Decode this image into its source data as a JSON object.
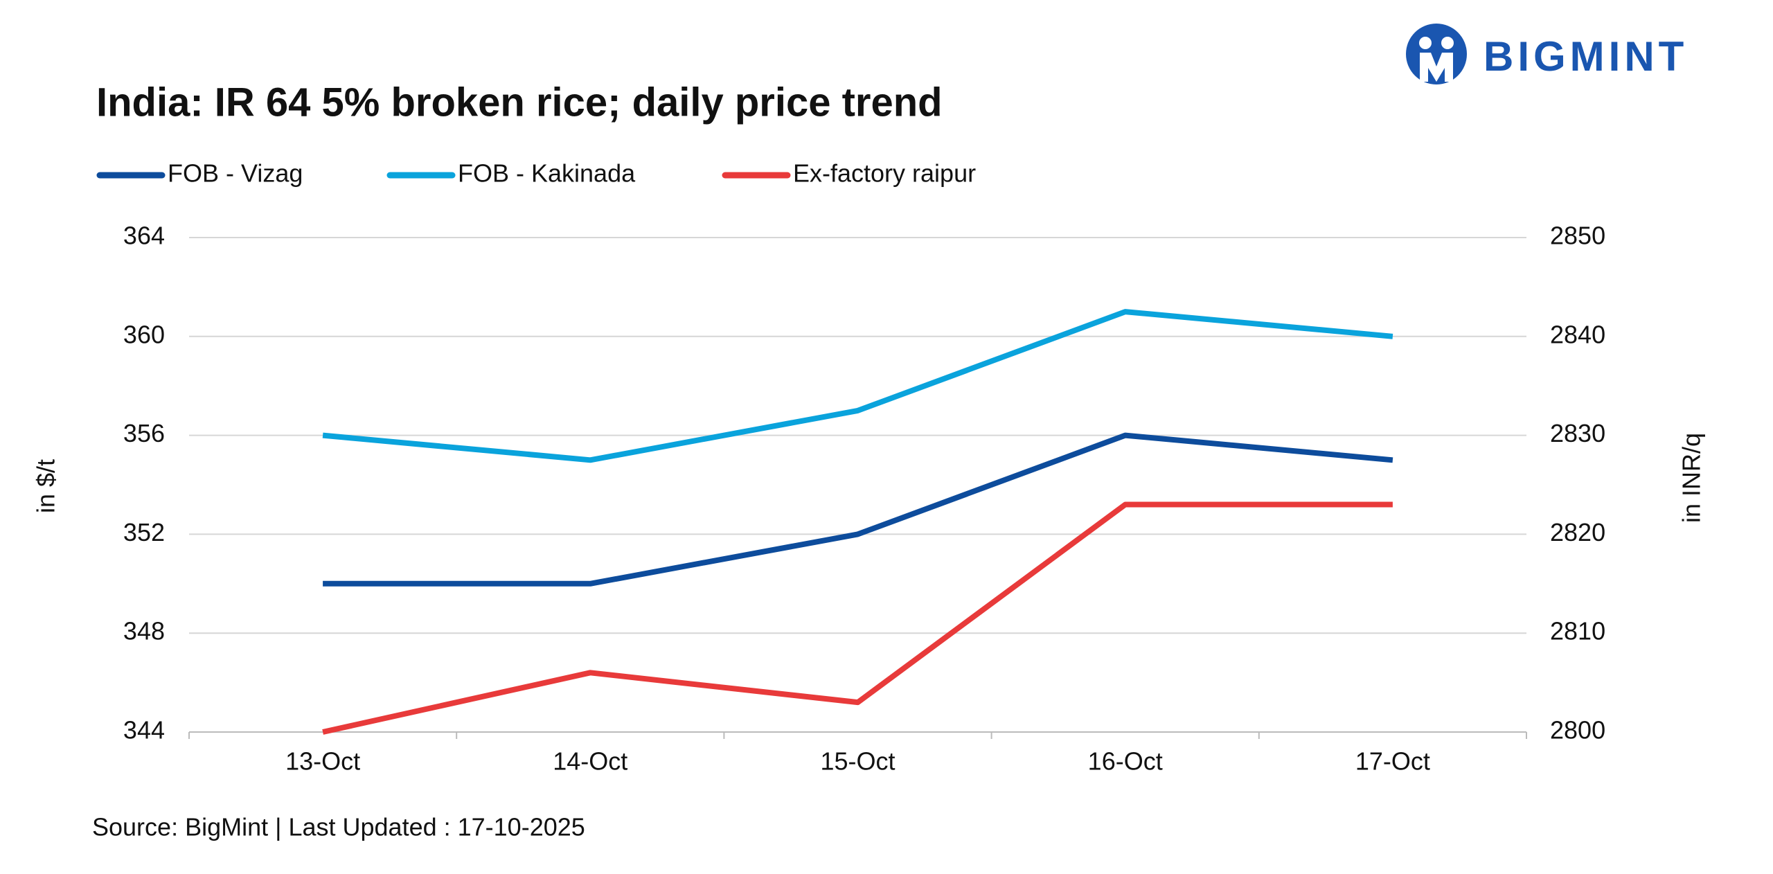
{
  "logo": "BIGMINT",
  "source": "Source: BigMint | Last Updated : 17-10-2025",
  "chart_data": {
    "type": "line",
    "title": "India: IR 64 5% broken rice; daily price trend",
    "y_label": "in $/t",
    "y2_label": "in INR/q",
    "categories": [
      "13-Oct",
      "14-Oct",
      "15-Oct",
      "16-Oct",
      "17-Oct"
    ],
    "series": [
      {
        "name": "FOB - Vizag",
        "color": "#0d4c9c",
        "values": [
          350,
          350,
          352,
          356,
          355
        ]
      },
      {
        "name": "FOB - Kakinada",
        "color": "#0aa3dc",
        "values": [
          356,
          355,
          357,
          361,
          360
        ]
      },
      {
        "name": "Ex-factory raipur",
        "color": "#e83a3a",
        "axis": "y2",
        "values": [
          2800,
          2806,
          2803,
          2823,
          2823
        ]
      }
    ],
    "ylim": [
      344,
      364
    ],
    "yticks": [
      344,
      348,
      352,
      356,
      360,
      364
    ],
    "y2lim": [
      2800,
      2850
    ],
    "y2ticks": [
      2800,
      2810,
      2820,
      2830,
      2840,
      2850
    ],
    "grid": true,
    "legend": "top"
  }
}
